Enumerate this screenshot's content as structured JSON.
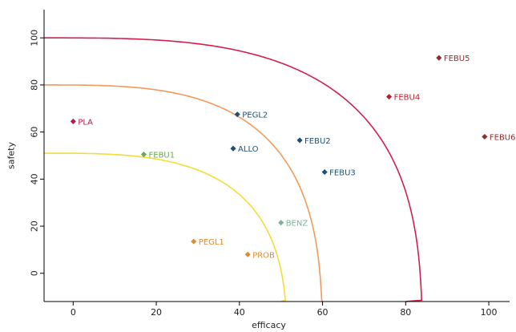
{
  "chart_data": {
    "type": "scatter",
    "title": "",
    "xlabel": "efficacy",
    "ylabel": "safety",
    "xlim": [
      -7,
      105
    ],
    "ylim": [
      -12,
      112
    ],
    "xticks": [
      0,
      20,
      40,
      60,
      80,
      100
    ],
    "yticks": [
      0,
      20,
      40,
      60,
      80,
      100
    ],
    "grid": false,
    "legend": "none",
    "points": [
      {
        "label": "PLA",
        "x": 0,
        "y": 64.5,
        "color": "#c0184a"
      },
      {
        "label": "FEBU1",
        "x": 17,
        "y": 50.5,
        "color": "#6aa84f"
      },
      {
        "label": "PEGL2",
        "x": 39.5,
        "y": 67.5,
        "color": "#1f4e79"
      },
      {
        "label": "ALLO",
        "x": 38.5,
        "y": 53,
        "color": "#1f4e79"
      },
      {
        "label": "FEBU2",
        "x": 54.5,
        "y": 56.5,
        "color": "#1f4e79"
      },
      {
        "label": "FEBU3",
        "x": 60.5,
        "y": 43,
        "color": "#1f4e79"
      },
      {
        "label": "FEBU4",
        "x": 76,
        "y": 75,
        "color": "#b22234"
      },
      {
        "label": "FEBU5",
        "x": 88,
        "y": 91.5,
        "color": "#8b2f2f"
      },
      {
        "label": "FEBU6",
        "x": 99,
        "y": 58,
        "color": "#8b2f2f"
      },
      {
        "label": "BENZ",
        "x": 50,
        "y": 21.5,
        "color": "#7fb29a"
      },
      {
        "label": "PEGL1",
        "x": 29,
        "y": 13.5,
        "color": "#e08a2c"
      },
      {
        "label": "PROB",
        "x": 42,
        "y": 8,
        "color": "#e08a2c"
      }
    ],
    "contours": [
      {
        "color": "#d21f4f",
        "y0": 100,
        "xmax": 84,
        "bottom_x": 80
      },
      {
        "color": "#f29a5c",
        "y0": 80,
        "xmax": 60,
        "bottom_x": 60
      },
      {
        "color": "#f5dc3a",
        "y0": 51,
        "xmax": 51.5,
        "bottom_x": 50
      }
    ]
  }
}
